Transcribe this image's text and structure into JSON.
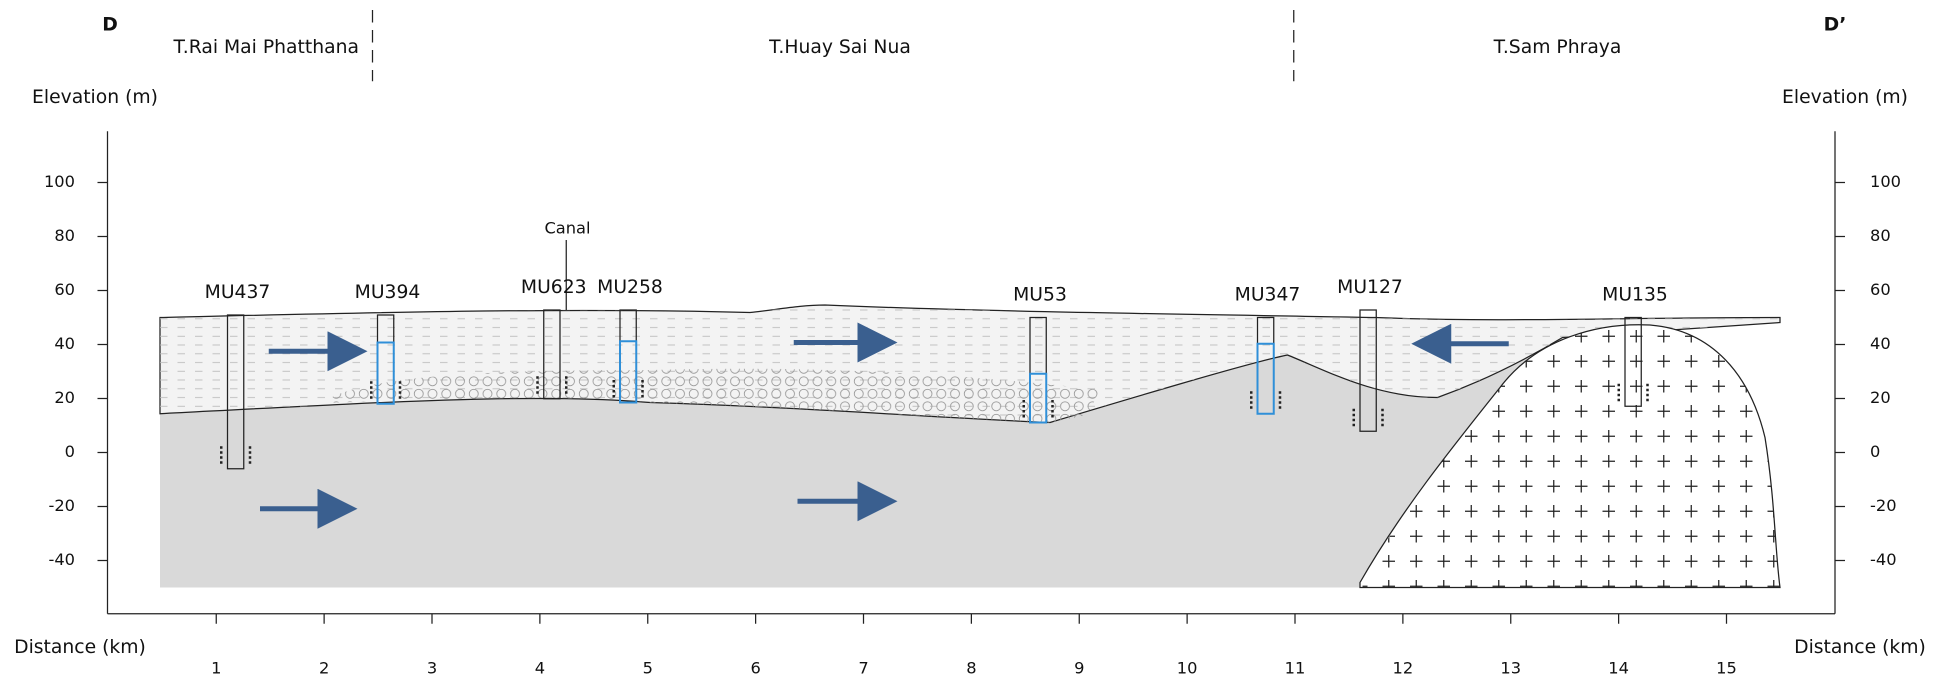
{
  "header": {
    "left_letter": "D",
    "right_letter": "D’",
    "zones": [
      "T.Rai Mai Phatthana",
      "T.Huay Sai Nua",
      "T.Sam Phraya"
    ]
  },
  "axes": {
    "left_title": "Elevation (m)",
    "right_title": "Elevation (m)",
    "x_title_left": "Distance (km)",
    "x_title_right": "Distance (km)",
    "yticks": [
      100,
      80,
      60,
      40,
      20,
      0,
      -20,
      -40
    ],
    "xticks": [
      1,
      2,
      3,
      4,
      5,
      6,
      7,
      8,
      9,
      10,
      11,
      12,
      13,
      14,
      15
    ]
  },
  "wells": [
    "MU437",
    "MU394",
    "MU623",
    "MU258",
    "MU53",
    "MU347",
    "MU127",
    "MU135"
  ],
  "canal": "Canal"
}
